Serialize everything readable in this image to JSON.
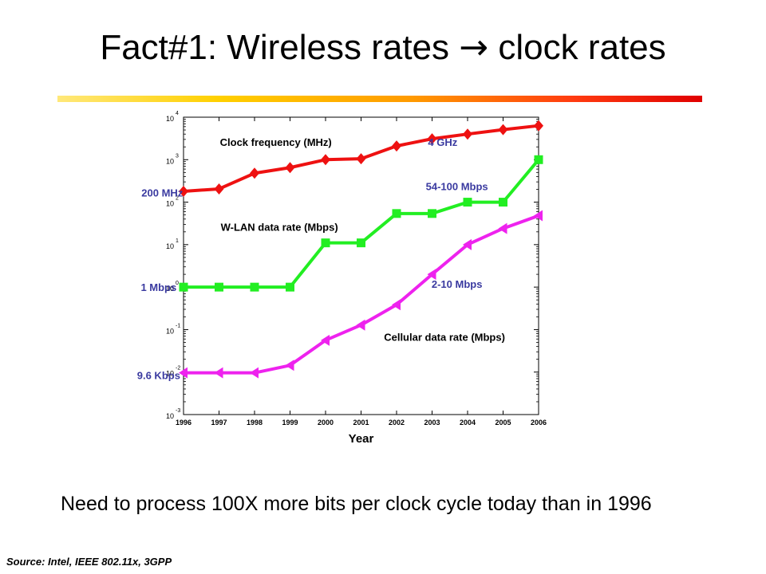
{
  "slide": {
    "title_prefix": "Fact#1: Wireless rates",
    "title_arrow": "→",
    "title_suffix": "clock rates",
    "caption": "Need to process 100X more bits per clock cycle today than in 1996",
    "source": "Source: Intel, IEEE 802.11x, 3GPP",
    "colors": {
      "title_bar_start": "#ffe87a",
      "title_bar_end": "#e00000"
    }
  },
  "chart_data": {
    "type": "line",
    "x": [
      1996,
      1997,
      1998,
      1999,
      2000,
      2001,
      2002,
      2003,
      2004,
      2005,
      2006
    ],
    "xlabel": "Year",
    "ylabel": "",
    "yscale": "log",
    "ylim": [
      0.001,
      10000
    ],
    "y_ticks": [
      {
        "base": "10",
        "exp": "-3",
        "value": 0.001
      },
      {
        "base": "10",
        "exp": "-2",
        "value": 0.01
      },
      {
        "base": "10",
        "exp": "-1",
        "value": 0.1
      },
      {
        "base": "10",
        "exp": "0",
        "value": 1
      },
      {
        "base": "10",
        "exp": "1",
        "value": 10
      },
      {
        "base": "10",
        "exp": "2",
        "value": 100
      },
      {
        "base": "10",
        "exp": "3",
        "value": 1000
      },
      {
        "base": "10",
        "exp": "4",
        "value": 10000
      }
    ],
    "grid": false,
    "series": [
      {
        "name": "Clock frequency (MHz)",
        "color": "#ee1111",
        "marker": "diamond",
        "values": [
          180,
          205,
          480,
          650,
          1000,
          1050,
          2100,
          3100,
          4000,
          5100,
          6300
        ]
      },
      {
        "name": "W-LAN data rate (Mbps)",
        "color": "#22ee22",
        "marker": "square",
        "values": [
          1,
          1,
          1,
          1,
          11,
          11,
          54,
          54,
          100,
          100,
          1000
        ]
      },
      {
        "name": "Cellular data rate (Mbps)",
        "color": "#ee22ee",
        "marker": "triangle",
        "values": [
          0.0096,
          0.0096,
          0.0096,
          0.0144,
          0.056,
          0.128,
          0.384,
          2,
          10,
          24,
          48
        ]
      }
    ],
    "annotations": [
      {
        "text": "Clock frequency (MHz)",
        "color": "#000000",
        "x": 1998.6,
        "y": 2600,
        "anchor": "middle"
      },
      {
        "text": "4 GHz",
        "color": "#3a3aa0",
        "x": 2003.3,
        "y": 2600,
        "anchor": "middle"
      },
      {
        "text": "54-100 Mbps",
        "color": "#3a3aa0",
        "x": 2003.7,
        "y": 240,
        "anchor": "middle"
      },
      {
        "text": "200 MHz",
        "color": "#3a3aa0",
        "x": 1995.4,
        "y": 170,
        "anchor": "middle"
      },
      {
        "text": "W-LAN data rate (Mbps)",
        "color": "#000000",
        "x": 1998.7,
        "y": 26,
        "anchor": "middle"
      },
      {
        "text": "1 Mbps",
        "color": "#3a3aa0",
        "x": 1995.3,
        "y": 1,
        "anchor": "middle"
      },
      {
        "text": "2-10 Mbps",
        "color": "#3a3aa0",
        "x": 2003.7,
        "y": 1.2,
        "anchor": "middle"
      },
      {
        "text": "Cellular data rate (Mbps)",
        "color": "#000000",
        "x": 2003.35,
        "y": 0.067,
        "anchor": "middle"
      },
      {
        "text": "9.6 Kbps",
        "color": "#3a3aa0",
        "x": 1995.3,
        "y": 0.0085,
        "anchor": "middle"
      }
    ]
  }
}
